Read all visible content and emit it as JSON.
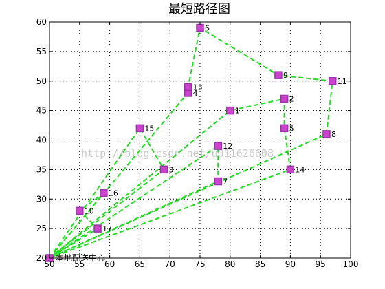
{
  "chart_data": {
    "type": "line",
    "title": "最短路径图",
    "xlabel": "",
    "ylabel": "",
    "xlim": [
      50,
      100
    ],
    "ylim": [
      20,
      60
    ],
    "xticks": [
      50,
      55,
      60,
      65,
      70,
      75,
      80,
      85,
      90,
      95,
      100
    ],
    "yticks": [
      20,
      25,
      30,
      35,
      40,
      45,
      50,
      55,
      60
    ],
    "grid": true,
    "depot": {
      "label": "本地配送中心",
      "x": 50,
      "y": 20
    },
    "points": [
      {
        "id": "1",
        "x": 80,
        "y": 45
      },
      {
        "id": "2",
        "x": 89,
        "y": 47
      },
      {
        "id": "3",
        "x": 69,
        "y": 35
      },
      {
        "id": "4",
        "x": 73,
        "y": 48
      },
      {
        "id": "5",
        "x": 89,
        "y": 42
      },
      {
        "id": "6",
        "x": 75,
        "y": 59
      },
      {
        "id": "7",
        "x": 78,
        "y": 33
      },
      {
        "id": "8",
        "x": 96,
        "y": 41
      },
      {
        "id": "9",
        "x": 88,
        "y": 51
      },
      {
        "id": "10",
        "x": 55,
        "y": 28
      },
      {
        "id": "11",
        "x": 97,
        "y": 50
      },
      {
        "id": "12",
        "x": 78,
        "y": 39
      },
      {
        "id": "13",
        "x": 73,
        "y": 49
      },
      {
        "id": "14",
        "x": 90,
        "y": 35
      },
      {
        "id": "15",
        "x": 65,
        "y": 42
      },
      {
        "id": "16",
        "x": 59,
        "y": 31
      },
      {
        "id": "17",
        "x": 58,
        "y": 25
      }
    ],
    "routes": [
      [
        "0",
        "1",
        "2",
        "5",
        "14",
        "0"
      ],
      [
        "0",
        "4",
        "13",
        "6",
        "9",
        "11",
        "8",
        "0"
      ],
      [
        "0",
        "15",
        "3",
        "0"
      ],
      [
        "0",
        "12",
        "7",
        "0"
      ],
      [
        "0",
        "16",
        "10",
        "17",
        "0"
      ]
    ],
    "colors": {
      "route_line": "#22dd22",
      "marker_face": "#cc44cc",
      "marker_edge": "#9933aa",
      "grid": "#000000",
      "axes": "#000000"
    },
    "watermark": "http://blog.csdn.net/u011626608"
  }
}
